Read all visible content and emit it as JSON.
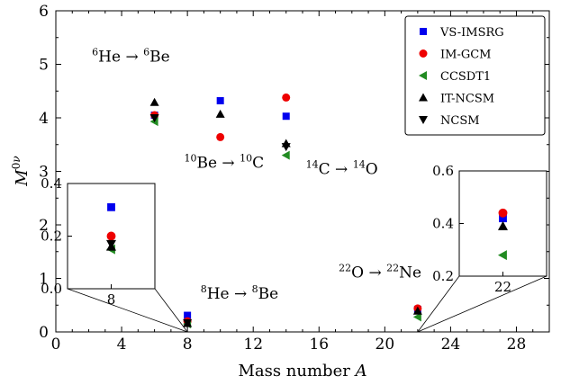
{
  "chart_data": {
    "type": "scatter",
    "xlabel": "Mass number A",
    "ylabel": "M0ν",
    "xlim": [
      0,
      30
    ],
    "ylim": [
      0,
      6
    ],
    "xticks": [
      0,
      4,
      8,
      12,
      16,
      20,
      24,
      28
    ],
    "yticks": [
      0,
      1,
      2,
      3,
      4,
      5,
      6
    ],
    "legend_position": "top-right",
    "series": [
      {
        "name": "VS-IMSRG",
        "marker": "square",
        "color": "#0000ee",
        "points": [
          [
            6,
            4.05
          ],
          [
            8,
            0.31
          ],
          [
            10,
            4.32
          ],
          [
            14,
            4.03
          ],
          [
            22,
            0.42
          ]
        ]
      },
      {
        "name": "IM-GCM",
        "marker": "circle",
        "color": "#ee0000",
        "points": [
          [
            6,
            4.05
          ],
          [
            8,
            0.2
          ],
          [
            10,
            3.64
          ],
          [
            14,
            4.38
          ],
          [
            22,
            0.44
          ]
        ]
      },
      {
        "name": "CCSDT1",
        "marker": "triangle-left",
        "color": "#228b22",
        "points": [
          [
            6,
            3.93
          ],
          [
            8,
            0.15
          ],
          [
            14,
            3.3
          ],
          [
            22,
            0.28
          ]
        ]
      },
      {
        "name": "IT-NCSM",
        "marker": "triangle-up",
        "color": "#000000",
        "points": [
          [
            6,
            4.29
          ],
          [
            8,
            0.16
          ],
          [
            10,
            4.07
          ],
          [
            14,
            3.52
          ],
          [
            22,
            0.39
          ]
        ]
      },
      {
        "name": "NCSM",
        "marker": "triangle-down",
        "color": "#000000",
        "points": [
          [
            6,
            4.0
          ],
          [
            8,
            0.17
          ],
          [
            14,
            3.46
          ]
        ]
      }
    ],
    "annotations": [
      {
        "base1": "6",
        "t1": "He → ",
        "base2": "6",
        "t2": "Be",
        "x": 2.2,
        "y": 5.05
      },
      {
        "base1": "10",
        "t1": "Be → ",
        "base2": "10",
        "t2": "C",
        "x": 7.8,
        "y": 3.07
      },
      {
        "base1": "14",
        "t1": "C → ",
        "base2": "14",
        "t2": "O",
        "x": 15.2,
        "y": 2.95
      },
      {
        "base1": "8",
        "t1": "He → ",
        "base2": "8",
        "t2": "Be",
        "x": 8.8,
        "y": 0.62
      },
      {
        "base1": "22",
        "t1": "O → ",
        "base2": "22",
        "t2": "Ne",
        "x": 17.2,
        "y": 1.02
      }
    ],
    "insets": [
      {
        "xlim": [
          7.5,
          8.5
        ],
        "ylim": [
          0.0,
          0.4
        ],
        "xticks": [
          8
        ],
        "yticks": [
          0.0,
          0.2,
          0.4
        ],
        "zoom_x": 8
      },
      {
        "xlim": [
          21.5,
          22.5
        ],
        "ylim": [
          0.2,
          0.6
        ],
        "xticks": [
          22
        ],
        "yticks": [
          0.2,
          0.4,
          0.6
        ],
        "zoom_x": 22
      }
    ]
  }
}
